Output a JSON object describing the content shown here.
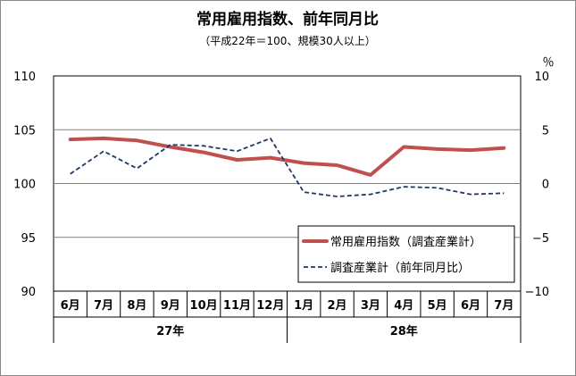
{
  "chart_data": {
    "type": "line",
    "title": "常用雇用指数、前年同月比",
    "subtitle": "（平成22年＝100、規模30人以上）",
    "right_unit": "％",
    "categories": [
      "6月",
      "7月",
      "8月",
      "9月",
      "10月",
      "11月",
      "12月",
      "1月",
      "2月",
      "3月",
      "4月",
      "5月",
      "6月",
      "7月"
    ],
    "year_groups": [
      {
        "label": "27年",
        "start": 0,
        "end": 6
      },
      {
        "label": "28年",
        "start": 7,
        "end": 13
      }
    ],
    "left_axis": {
      "min": 90,
      "max": 110,
      "ticks": [
        110,
        105,
        100,
        95,
        90
      ]
    },
    "right_axis": {
      "min": -10,
      "max": 10,
      "ticks": [
        10,
        5,
        0,
        -5,
        -10
      ],
      "tick_labels": [
        "10",
        "5",
        "0",
        "−5",
        "−10"
      ]
    },
    "series": [
      {
        "name": "常用雇用指数（調査産業計）",
        "axis": "left",
        "style": "solid",
        "color": "#c0504d",
        "values": [
          104.1,
          104.2,
          104.0,
          103.4,
          102.9,
          102.2,
          102.4,
          101.9,
          101.7,
          100.8,
          103.4,
          103.2,
          103.1,
          103.3
        ]
      },
      {
        "name": "調査産業計（前年同月比）",
        "axis": "right",
        "style": "dashed",
        "color": "#1f3864",
        "values": [
          0.9,
          3.0,
          1.4,
          3.6,
          3.5,
          3.0,
          4.2,
          -0.8,
          -1.2,
          -1.0,
          -0.3,
          -0.4,
          -1.0,
          -0.9
        ]
      }
    ],
    "grid": true,
    "legend_position": "bottom-right"
  }
}
